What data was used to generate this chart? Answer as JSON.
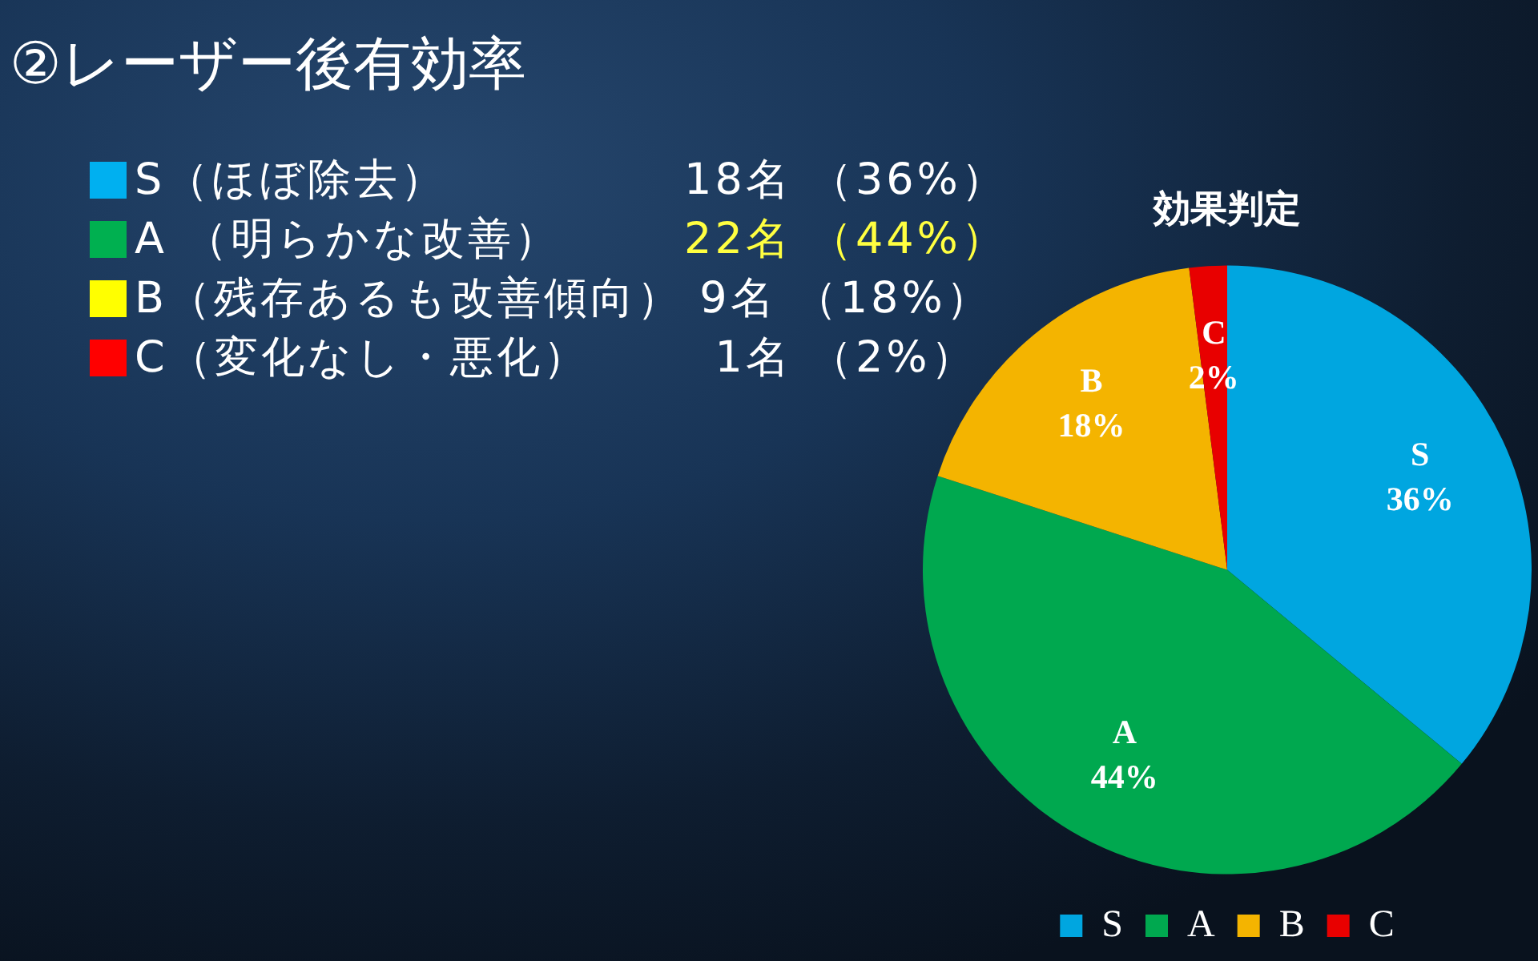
{
  "chart_data": {
    "type": "pie",
    "title": "②レーザー後有効率",
    "subtitle": "効果判定",
    "categories": [
      "S",
      "A",
      "B",
      "C"
    ],
    "values": [
      36,
      44,
      18,
      2
    ],
    "colors": [
      "#00a6e0",
      "#00a84f",
      "#f4b400",
      "#e80000"
    ],
    "value_labels": [
      "36%",
      "44%",
      "18%",
      "2%"
    ],
    "legend": "bottom",
    "annotations": [
      "S（ほぼ除去）",
      "18名 （36%）",
      "A （明らかな改善）",
      "22名 （44%）",
      "B（残存あるも改善傾向）",
      "9名 （18%）",
      "C（変化なし・悪化）",
      "1名 （2%）"
    ]
  }
}
